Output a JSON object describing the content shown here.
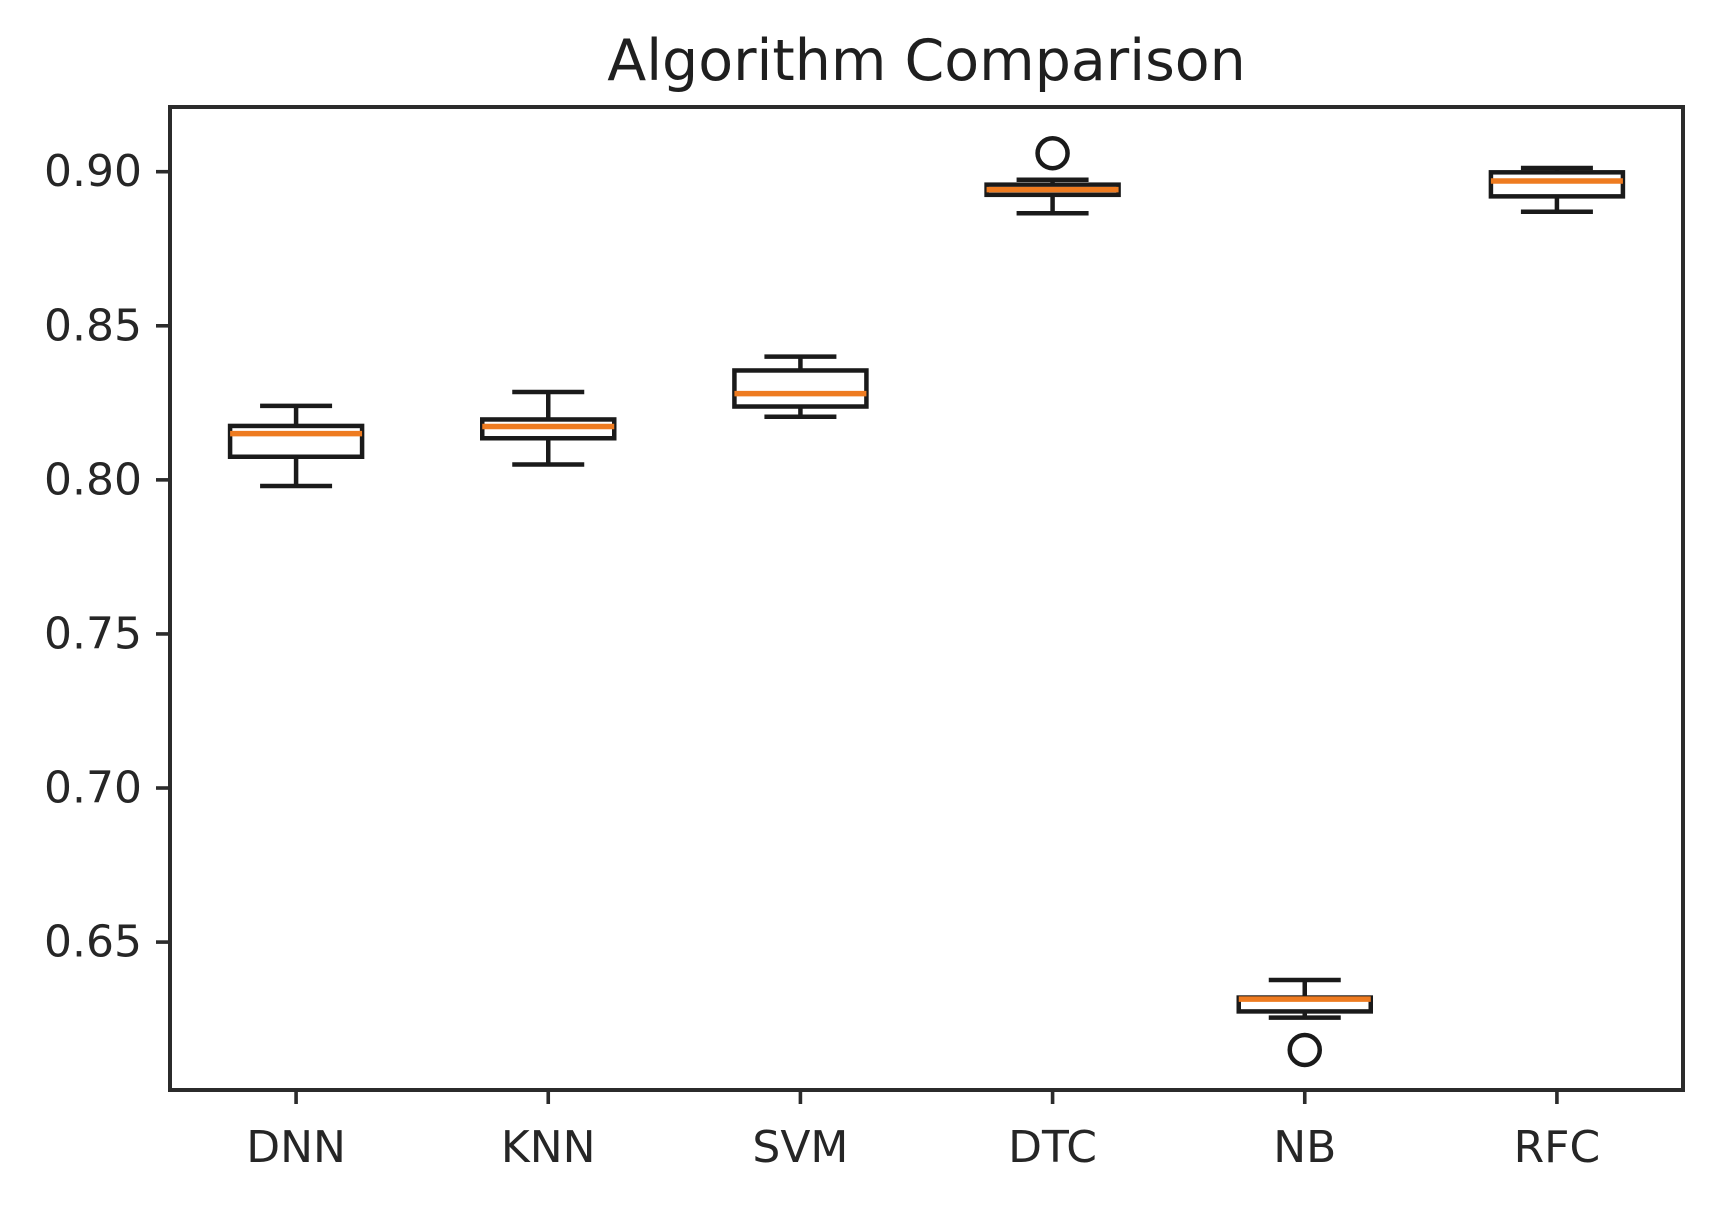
{
  "figure": {
    "background": "#ffffff"
  },
  "chart_data": {
    "type": "box",
    "title": "Algorithm Comparison",
    "xlabel": "",
    "ylabel": "",
    "categories": [
      "DNN",
      "KNN",
      "SVM",
      "DTC",
      "NB",
      "RFC"
    ],
    "series": [
      {
        "name": "DNN",
        "whisker_low": 0.798,
        "q1": 0.8075,
        "median": 0.815,
        "q3": 0.8175,
        "whisker_high": 0.824,
        "outliers": []
      },
      {
        "name": "KNN",
        "whisker_low": 0.805,
        "q1": 0.8135,
        "median": 0.8173,
        "q3": 0.8196,
        "whisker_high": 0.8285,
        "outliers": []
      },
      {
        "name": "SVM",
        "whisker_low": 0.8205,
        "q1": 0.8238,
        "median": 0.828,
        "q3": 0.8355,
        "whisker_high": 0.84,
        "outliers": []
      },
      {
        "name": "DTC",
        "whisker_low": 0.8865,
        "q1": 0.8925,
        "median": 0.8942,
        "q3": 0.8958,
        "whisker_high": 0.8974,
        "outliers": [
          0.906
        ]
      },
      {
        "name": "NB",
        "whisker_low": 0.6255,
        "q1": 0.6275,
        "median": 0.6315,
        "q3": 0.632,
        "whisker_high": 0.6377,
        "outliers": [
          0.615
        ]
      },
      {
        "name": "RFC",
        "whisker_low": 0.887,
        "q1": 0.892,
        "median": 0.897,
        "q3": 0.8998,
        "whisker_high": 0.9012,
        "outliers": []
      }
    ],
    "ylim": [
      0.602,
      0.921
    ],
    "yticks": [
      0.65,
      0.7,
      0.75,
      0.8,
      0.85,
      0.9
    ],
    "ytick_labels": [
      "0.65",
      "0.70",
      "0.75",
      "0.80",
      "0.85",
      "0.90"
    ],
    "grid": false,
    "legend": null,
    "colors": {
      "median": "#ee7b20",
      "box_edge": "#1a1a1a",
      "whisker": "#1a1a1a",
      "outlier_edge": "#1a1a1a",
      "spine": "#2b2b2b",
      "tick_label": "#262626",
      "title": "#1f1f1f",
      "background": "#ffffff"
    }
  }
}
